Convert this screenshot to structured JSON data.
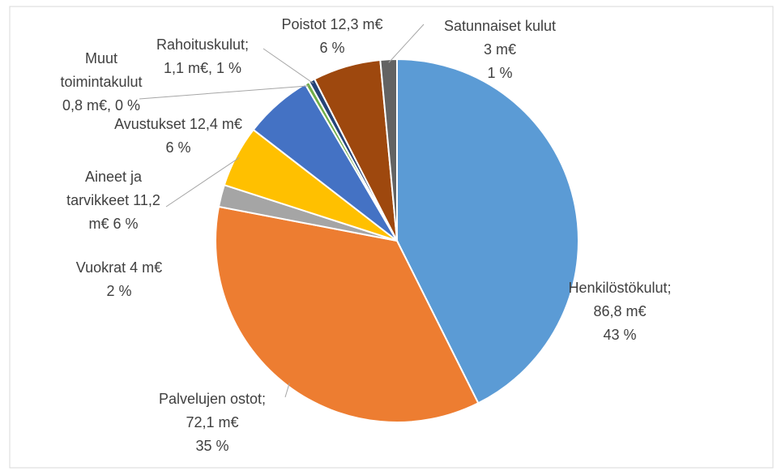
{
  "chart_data": {
    "type": "pie",
    "labels": [
      [
        "Henkilöstökulut;",
        "86,8 m€",
        "43 %"
      ],
      [
        "Palvelujen ostot;",
        "72,1 m€",
        "35 %"
      ],
      [
        "Vuokrat 4 m€",
        "2 %"
      ],
      [
        "Aineet ja",
        "tarvikkeet 11,2",
        "m€ 6 %"
      ],
      [
        "Avustukset 12,4 m€",
        "6 %"
      ],
      [
        "Muut",
        "toimintakulut",
        "0,8 m€, 0 %"
      ],
      [
        "Rahoituskulut;",
        "1,1 m€, 1 %"
      ],
      [
        "Poistot 12,3 m€",
        "6 %"
      ],
      [
        "Satunnaiset kulut",
        "3 m€",
        "1 %"
      ]
    ],
    "values": [
      86.8,
      72.1,
      4,
      11.2,
      12.4,
      0.8,
      1.1,
      12.3,
      3
    ],
    "colors": [
      "#5b9bd5",
      "#ed7d31",
      "#a5a5a5",
      "#ffc000",
      "#4472c4",
      "#70ad47",
      "#264478",
      "#9e480e",
      "#636363"
    ]
  }
}
